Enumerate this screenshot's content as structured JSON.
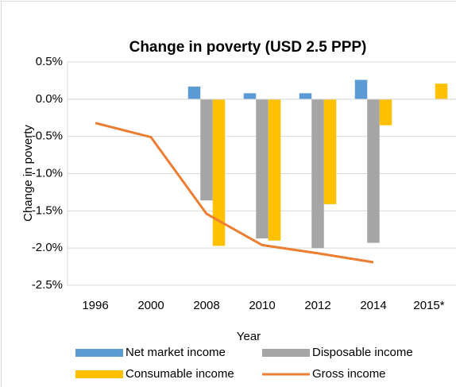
{
  "chart_data": {
    "type": "bar",
    "title": "Change in poverty (USD 2.5 PPP)",
    "x_label": "Year",
    "y_label": "Change in poverty",
    "categories": [
      "1996",
      "2000",
      "2008",
      "2010",
      "2012",
      "2014",
      "2015*"
    ],
    "series": [
      {
        "name": "Net market income",
        "color": "#5b9bd5",
        "type": "bar",
        "values": [
          null,
          null,
          0.17,
          0.08,
          0.08,
          0.26,
          null
        ]
      },
      {
        "name": "Disposable income",
        "color": "#a5a5a5",
        "type": "bar",
        "values": [
          null,
          null,
          -1.36,
          -1.87,
          -2.0,
          -1.93,
          null
        ]
      },
      {
        "name": "Consumable income",
        "color": "#ffc000",
        "type": "bar",
        "values": [
          null,
          null,
          -1.97,
          -1.9,
          -1.41,
          -0.35,
          0.21
        ]
      },
      {
        "name": "Gross income",
        "color": "#ed7d31",
        "type": "line",
        "values": [
          -0.32,
          -0.51,
          -1.54,
          -1.96,
          -2.07,
          -2.19,
          null
        ]
      }
    ],
    "ylim": [
      -2.5,
      0.5
    ],
    "yticks": [
      {
        "value": 0.5,
        "label": "0.5%"
      },
      {
        "value": 0.0,
        "label": "0.0%"
      },
      {
        "value": -0.5,
        "label": "-0.5%"
      },
      {
        "value": -1.0,
        "label": "-1.0%"
      },
      {
        "value": -1.5,
        "label": "-1.5%"
      },
      {
        "value": -2.0,
        "label": "-2.0%"
      },
      {
        "value": -2.5,
        "label": "-2.5%"
      }
    ],
    "grid": true,
    "legend": "bottom"
  }
}
